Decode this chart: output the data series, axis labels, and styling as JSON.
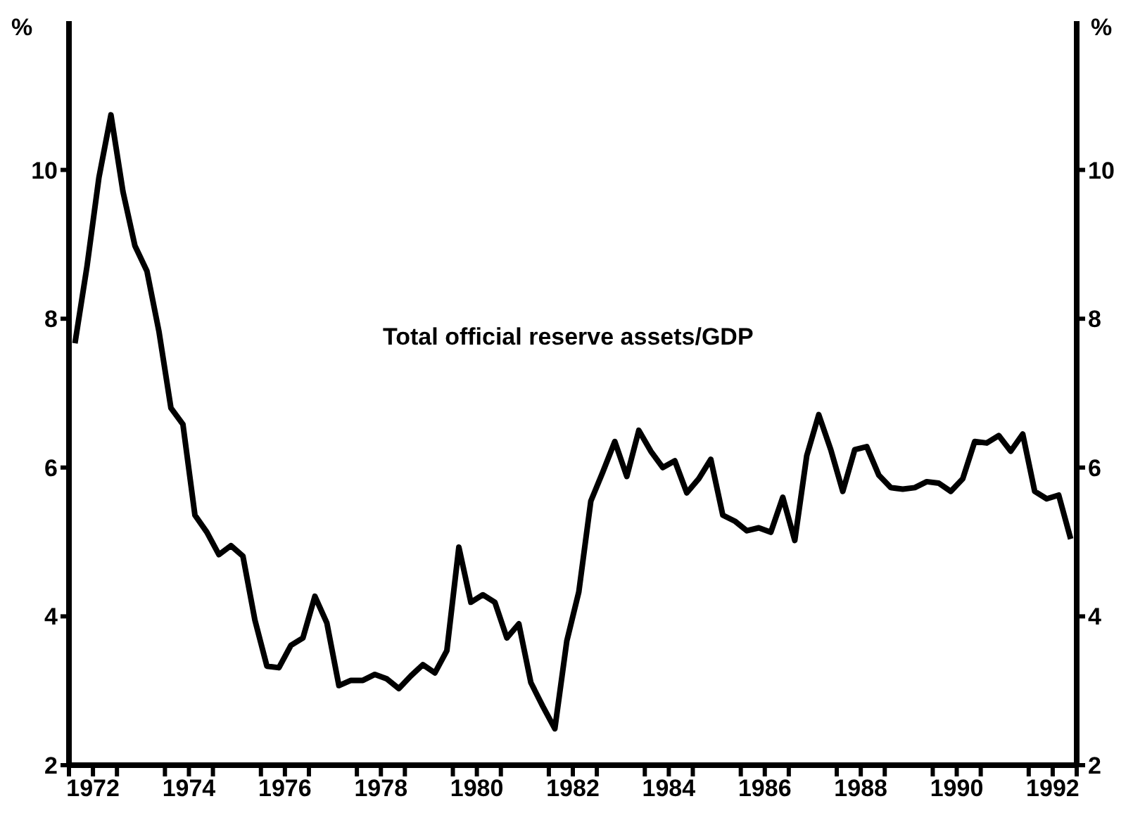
{
  "chart_data": {
    "type": "line",
    "ylabel": "%",
    "y2label": "%",
    "x": [
      1972.125,
      1972.375,
      1972.625,
      1972.875,
      1973.125,
      1973.375,
      1973.625,
      1973.875,
      1974.125,
      1974.375,
      1974.625,
      1974.875,
      1975.125,
      1975.375,
      1975.625,
      1975.875,
      1976.125,
      1976.375,
      1976.625,
      1976.875,
      1977.125,
      1977.375,
      1977.625,
      1977.875,
      1978.125,
      1978.375,
      1978.625,
      1978.875,
      1979.125,
      1979.375,
      1979.625,
      1979.875,
      1980.125,
      1980.375,
      1980.625,
      1980.875,
      1981.125,
      1981.375,
      1981.625,
      1981.875,
      1982.125,
      1982.375,
      1982.625,
      1982.875,
      1983.125,
      1983.375,
      1983.625,
      1983.875,
      1984.125,
      1984.375,
      1984.625,
      1984.875,
      1985.125,
      1985.375,
      1985.625,
      1985.875,
      1986.125,
      1986.375,
      1986.625,
      1986.875,
      1987.125,
      1987.375,
      1987.625,
      1987.875,
      1988.125,
      1988.375,
      1988.625,
      1988.875,
      1989.125,
      1989.375,
      1989.625,
      1989.875,
      1990.125,
      1990.375,
      1990.625,
      1990.875,
      1991.125,
      1991.375,
      1991.625,
      1991.875,
      1992.125,
      1992.375,
      1992.625,
      1992.875
    ],
    "series": [
      {
        "name": "Total official reserve assets/GDP",
        "color": "#000000",
        "values": [
          7.67,
          8.7,
          9.9,
          10.74,
          9.71,
          8.98,
          8.64,
          7.83,
          6.8,
          6.58,
          5.36,
          5.13,
          4.83,
          4.95,
          4.81,
          3.95,
          3.33,
          3.31,
          3.61,
          3.71,
          4.27,
          3.91,
          3.07,
          3.14,
          3.14,
          3.22,
          3.16,
          3.03,
          3.2,
          3.35,
          3.24,
          3.54,
          4.93,
          4.19,
          4.29,
          4.19,
          3.71,
          3.9,
          3.11,
          2.79,
          2.49,
          3.67,
          4.33,
          5.55,
          5.94,
          6.35,
          5.88,
          6.5,
          6.22,
          6.0,
          6.09,
          5.66,
          5.85,
          6.11,
          5.36,
          5.28,
          5.15,
          5.19,
          5.13,
          5.6,
          5.02,
          6.16,
          6.71,
          6.24,
          5.68,
          6.24,
          6.28,
          5.9,
          5.73,
          5.71,
          5.73,
          5.81,
          5.79,
          5.68,
          5.85,
          6.35,
          6.33,
          6.43,
          6.22,
          6.45,
          5.68,
          5.58,
          5.63,
          5.04
        ]
      }
    ],
    "xlim": [
      1972,
      1993
    ],
    "xticks": [
      {
        "value": 1972,
        "label": null
      },
      {
        "value": 1972.5,
        "label": "1972"
      },
      {
        "value": 1973,
        "label": null
      },
      {
        "value": 1974,
        "label": null
      },
      {
        "value": 1974.5,
        "label": "1974"
      },
      {
        "value": 1975,
        "label": null
      },
      {
        "value": 1976,
        "label": null
      },
      {
        "value": 1976.5,
        "label": "1976"
      },
      {
        "value": 1977,
        "label": null
      },
      {
        "value": 1978,
        "label": null
      },
      {
        "value": 1978.5,
        "label": "1978"
      },
      {
        "value": 1979,
        "label": null
      },
      {
        "value": 1980,
        "label": null
      },
      {
        "value": 1980.5,
        "label": "1980"
      },
      {
        "value": 1981,
        "label": null
      },
      {
        "value": 1982,
        "label": null
      },
      {
        "value": 1982.5,
        "label": "1982"
      },
      {
        "value": 1983,
        "label": null
      },
      {
        "value": 1984,
        "label": null
      },
      {
        "value": 1984.5,
        "label": "1984"
      },
      {
        "value": 1985,
        "label": null
      },
      {
        "value": 1986,
        "label": null
      },
      {
        "value": 1986.5,
        "label": "1986"
      },
      {
        "value": 1987,
        "label": null
      },
      {
        "value": 1988,
        "label": null
      },
      {
        "value": 1988.5,
        "label": "1988"
      },
      {
        "value": 1989,
        "label": null
      },
      {
        "value": 1990,
        "label": null
      },
      {
        "value": 1990.5,
        "label": "1990"
      },
      {
        "value": 1991,
        "label": null
      },
      {
        "value": 1992,
        "label": null
      },
      {
        "value": 1992.5,
        "label": "1992"
      },
      {
        "value": 1993,
        "label": null
      }
    ],
    "ylim": [
      2,
      12
    ],
    "yticks": [
      2,
      4,
      6,
      8,
      10
    ],
    "y2lim": [
      2,
      12
    ],
    "y2ticks": [
      2,
      4,
      6,
      8,
      10
    ],
    "grid": false,
    "legend": false,
    "marker": "none",
    "line_style": "solid"
  }
}
